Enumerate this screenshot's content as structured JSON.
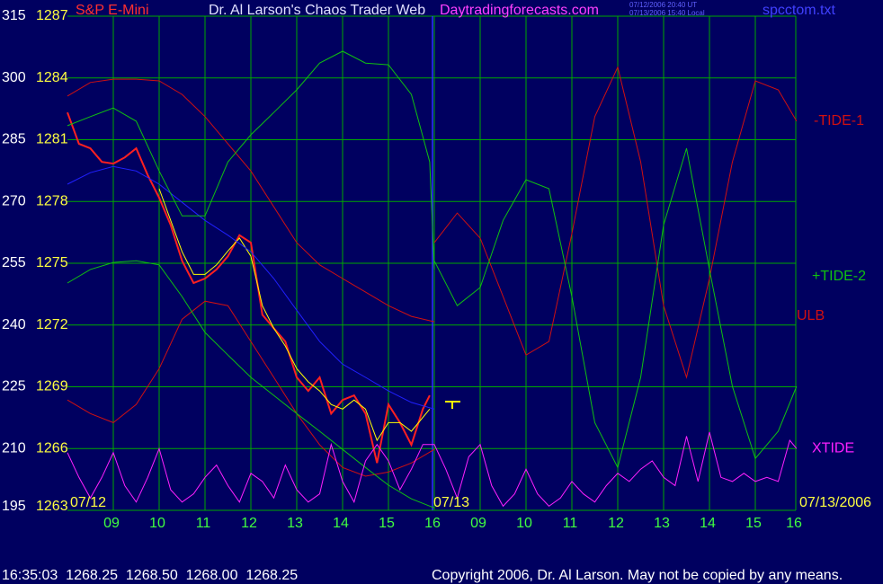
{
  "chart_data": {
    "type": "line",
    "title": "Dr. Al Larson's Chaos Trader Web",
    "subtitle": "S&P E-Mini",
    "website": "Daytradingforecasts.com",
    "timestamps": [
      "07/12/2006 20:40 UT",
      "07/13/2006 15:40 Local"
    ],
    "file": "spcctom.txt",
    "date_labels": [
      "07/12",
      "07/13",
      "07/13/2006"
    ],
    "quote": "16:35:03  1268.25  1268.50  1268.00  1268.25",
    "copyright": "Copyright 2006, Dr. Al Larson. May not be copied by any means.",
    "grid": true,
    "xlim": [
      0,
      16
    ],
    "xticks": [
      {
        "value": 1,
        "label": "09"
      },
      {
        "value": 2,
        "label": "10"
      },
      {
        "value": 3,
        "label": "11"
      },
      {
        "value": 4,
        "label": "12"
      },
      {
        "value": 5,
        "label": "13"
      },
      {
        "value": 6,
        "label": "14"
      },
      {
        "value": 7,
        "label": "15"
      },
      {
        "value": 8,
        "label": "16"
      },
      {
        "value": 9,
        "label": "09"
      },
      {
        "value": 10,
        "label": "10"
      },
      {
        "value": 11,
        "label": "11"
      },
      {
        "value": 12,
        "label": "12"
      },
      {
        "value": 13,
        "label": "13"
      },
      {
        "value": 14,
        "label": "14"
      },
      {
        "value": 15,
        "label": "15"
      },
      {
        "value": 16,
        "label": "16"
      }
    ],
    "ylim": [
      195,
      315
    ],
    "yticks": [
      195,
      210,
      225,
      240,
      255,
      270,
      285,
      300,
      315
    ],
    "y2lim": [
      1263,
      1287
    ],
    "y2ticks": [
      1263,
      1266,
      1269,
      1272,
      1275,
      1278,
      1281,
      1284,
      1287
    ],
    "series": [
      {
        "color": "#ff2020",
        "x": [
          0,
          0.25,
          0.5,
          0.75,
          1,
          1.25,
          1.5,
          1.75,
          2,
          2.25,
          2.5,
          2.75,
          3,
          3.25,
          3.5,
          3.75,
          4,
          4.25,
          4.5,
          4.75,
          5,
          5.25,
          5.5,
          5.75,
          6,
          6.25,
          6.5,
          6.75,
          7,
          7.25,
          7.5,
          7.75,
          7.9
        ],
        "values": [
          291.6,
          284.0,
          282.9,
          279.6,
          279.2,
          280.7,
          282.9,
          276.4,
          270.9,
          264.3,
          255.6,
          250.2,
          251.3,
          253.5,
          256.7,
          261.8,
          260.0,
          242.5,
          239.2,
          236.0,
          227.3,
          224.0,
          227.3,
          218.5,
          221.8,
          222.9,
          218.5,
          206.5,
          220.7,
          216.3,
          210.9,
          219.6,
          222.9
        ]
      },
      {
        "color": "#ffff00",
        "x": [
          2,
          2.25,
          2.5,
          2.75,
          3,
          3.25,
          3.5,
          3.75,
          4,
          4.25,
          4.5,
          4.75,
          5,
          5.25,
          5.5,
          5.75,
          6,
          6.25,
          6.5,
          6.75,
          7,
          7.25,
          7.5,
          7.9
        ],
        "values": [
          273.1,
          265.4,
          257.8,
          252.3,
          252.3,
          254.6,
          258.0,
          261.1,
          256.7,
          244.7,
          239.2,
          234.9,
          229.4,
          226.2,
          224.0,
          220.7,
          219.6,
          221.8,
          219.6,
          212.0,
          216.3,
          216.3,
          214.2,
          219.6
        ]
      },
      {
        "color": "#2020ff",
        "x": [
          0,
          0.5,
          1,
          1.5,
          2,
          2.5,
          3,
          3.5,
          4,
          4.5,
          5,
          5.5,
          6,
          6.5,
          7,
          7.5,
          8
        ],
        "values": [
          274.2,
          277.0,
          278.5,
          277.4,
          274.2,
          269.8,
          265.4,
          261.8,
          257.8,
          251.3,
          243.6,
          236.0,
          230.5,
          227.3,
          224.0,
          221.2,
          219.6
        ]
      },
      {
        "name": "ULB",
        "color": "#d01010",
        "x": [
          0,
          0.5,
          1,
          1.5,
          2,
          2.5,
          3,
          3.5,
          4,
          4.5,
          5,
          5.5,
          6,
          6.5,
          7,
          7.5,
          8
        ],
        "values": [
          295.6,
          298.9,
          299.7,
          299.7,
          299.3,
          296.0,
          290.6,
          284.0,
          277.4,
          268.7,
          260.0,
          254.6,
          251.3,
          248.0,
          244.7,
          242.1,
          240.8
        ]
      },
      {
        "color": "#d01010",
        "x": [
          0,
          0.5,
          1,
          1.5,
          2,
          2.5,
          3,
          3.5,
          4,
          4.5,
          5,
          5.5,
          6,
          6.5,
          7,
          7.5,
          8
        ],
        "values": [
          221.8,
          218.5,
          216.3,
          220.7,
          229.4,
          241.4,
          245.8,
          244.7,
          236.0,
          227.3,
          218.5,
          210.9,
          205.4,
          203.3,
          204.3,
          206.5,
          209.8
        ]
      },
      {
        "color": "#10c010",
        "x": [
          0,
          0.5,
          1,
          1.5,
          2,
          2.5,
          3,
          3.5,
          4,
          4.5,
          5,
          5.5,
          6,
          6.5,
          7,
          7.5,
          7.9,
          8
        ],
        "values": [
          288.4,
          290.6,
          292.7,
          289.5,
          277.4,
          266.5,
          266.5,
          279.6,
          286.2,
          291.6,
          297.1,
          303.6,
          306.5,
          303.6,
          303.2,
          296.0,
          279.6,
          253.5
        ]
      },
      {
        "color": "#10c010",
        "x": [
          0,
          0.5,
          1,
          1.5,
          2,
          2.5,
          3,
          3.5,
          4,
          4.5,
          5,
          5.5,
          6,
          6.5,
          7,
          7.5,
          8
        ],
        "values": [
          250.2,
          253.5,
          255.2,
          255.6,
          254.6,
          246.9,
          238.2,
          232.7,
          227.3,
          222.9,
          218.5,
          214.2,
          209.8,
          205.4,
          201.1,
          197.8,
          195.6
        ]
      },
      {
        "name": "-TIDE-1",
        "color": "#d01010",
        "x": [
          8,
          8.5,
          9,
          9.5,
          10,
          10.5,
          11,
          11.5,
          12,
          12.5,
          13,
          13.5,
          14,
          14.5,
          15,
          15.5,
          15.9
        ],
        "values": [
          260.0,
          267.2,
          261.1,
          246.9,
          232.7,
          236.0,
          262.2,
          290.6,
          302.6,
          279.6,
          244.7,
          227.3,
          251.3,
          279.6,
          299.3,
          297.1,
          289.5
        ]
      },
      {
        "name": "+TIDE-2",
        "color": "#10c010",
        "x": [
          8,
          8.5,
          9,
          9.5,
          10,
          10.5,
          11,
          11.5,
          12,
          12.5,
          13,
          13.5,
          14,
          14.5,
          15,
          15.5,
          15.9
        ],
        "values": [
          255.6,
          244.7,
          249.1,
          265.4,
          275.3,
          273.1,
          246.9,
          216.3,
          205.4,
          227.3,
          264.3,
          282.9,
          253.5,
          225.1,
          207.6,
          214.2,
          225.1
        ]
      },
      {
        "name": "XTIDE",
        "color": "#ff20ff",
        "x": [
          0,
          0.25,
          0.5,
          0.75,
          1,
          1.25,
          1.5,
          1.75,
          2,
          2.25,
          2.5,
          2.75,
          3,
          3.25,
          3.5,
          3.75,
          4,
          4.25,
          4.5,
          4.75,
          5,
          5.25,
          5.5,
          5.75,
          6,
          6.25,
          6.5,
          6.75,
          7,
          7.25,
          7.5,
          7.75,
          8,
          8.25,
          8.5,
          8.75,
          9,
          9.25,
          9.5,
          9.75,
          10,
          10.25,
          10.5,
          10.75,
          11,
          11.25,
          11.5,
          11.75,
          12,
          12.25,
          12.5,
          12.75,
          13,
          13.25,
          13.5,
          13.75,
          14,
          14.25,
          14.5,
          14.75,
          15,
          15.25,
          15.5,
          15.75,
          15.9
        ],
        "values": [
          209,
          203,
          198,
          203,
          209,
          201,
          197,
          203,
          210,
          200,
          197,
          199,
          203,
          206,
          201,
          197,
          204,
          202,
          198,
          206,
          200,
          197,
          199,
          211,
          202,
          197,
          207,
          211,
          207,
          200,
          205,
          211,
          211,
          205,
          198,
          208,
          211,
          201,
          196,
          199,
          205,
          199,
          196,
          198,
          202,
          199,
          197,
          201,
          204,
          202,
          205,
          207,
          203,
          201,
          213,
          202,
          214,
          203,
          202,
          204,
          202,
          203,
          202,
          212,
          210
        ]
      }
    ]
  }
}
